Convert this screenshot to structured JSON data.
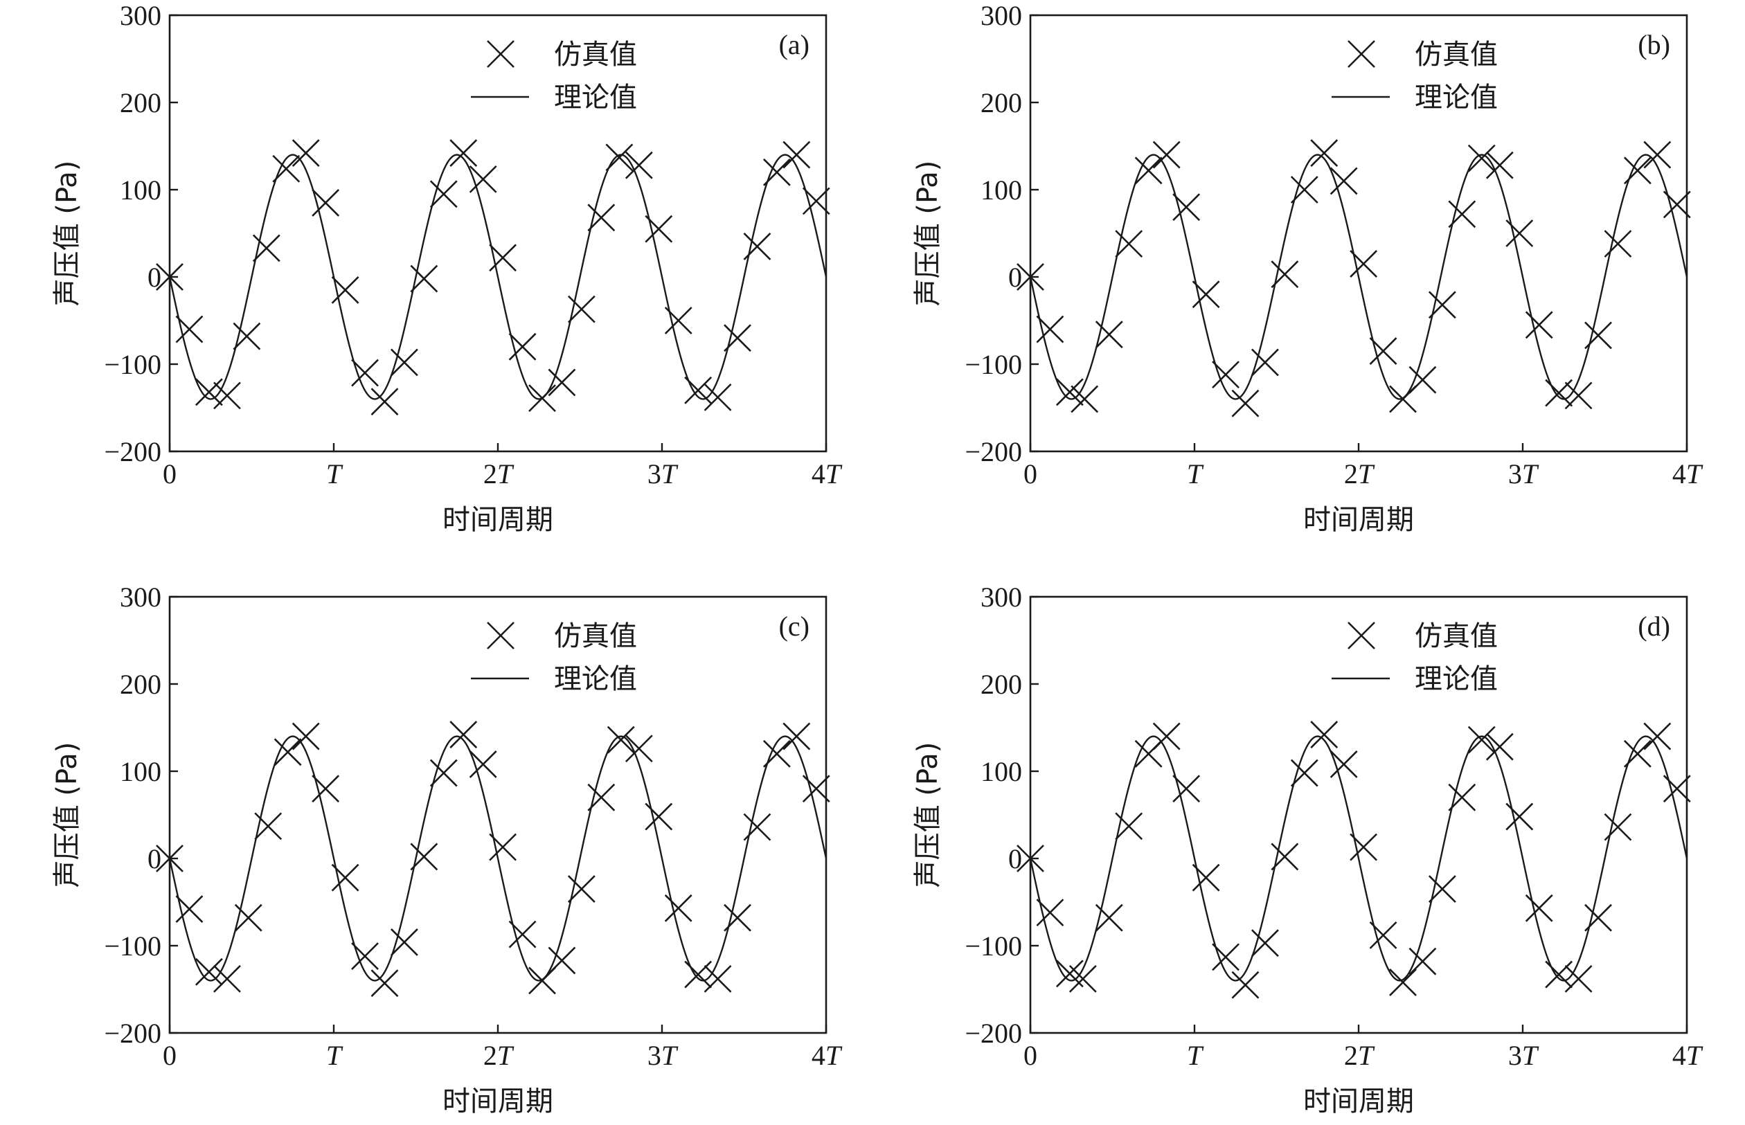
{
  "chart_data": [
    {
      "type": "line",
      "panel_label": "(a)",
      "xlabel": "时间周期",
      "ylabel": "声压值 (Pa)",
      "xlim": [
        0,
        4
      ],
      "ylim": [
        -200,
        300
      ],
      "x_ticks": [
        {
          "value": 0,
          "coef": "0",
          "sym": ""
        },
        {
          "value": 1,
          "coef": "",
          "sym": "T"
        },
        {
          "value": 2,
          "coef": "2",
          "sym": "T"
        },
        {
          "value": 3,
          "coef": "3",
          "sym": "T"
        },
        {
          "value": 4,
          "coef": "4",
          "sym": "T"
        }
      ],
      "y_ticks": [
        {
          "value": -200,
          "label": "−200"
        },
        {
          "value": -100,
          "label": "−100"
        },
        {
          "value": 0,
          "label": "0"
        },
        {
          "value": 100,
          "label": "100"
        },
        {
          "value": 200,
          "label": "200"
        },
        {
          "value": 300,
          "label": "300"
        }
      ],
      "legend": {
        "position": "top-center",
        "items": [
          {
            "marker": "cross",
            "label": "仿真值"
          },
          {
            "marker": "line",
            "label": "理论值"
          }
        ]
      },
      "series": [
        {
          "name": "仿真值",
          "kind": "scatter",
          "marker": "x",
          "x": [
            0.0,
            0.12,
            0.24,
            0.35,
            0.47,
            0.59,
            0.71,
            0.83,
            0.95,
            1.07,
            1.19,
            1.31,
            1.43,
            1.55,
            1.67,
            1.79,
            1.91,
            2.03,
            2.15,
            2.27,
            2.39,
            2.51,
            2.63,
            2.74,
            2.86,
            2.98,
            3.1,
            3.22,
            3.34,
            3.46,
            3.58,
            3.7,
            3.82,
            3.94
          ],
          "y": [
            0,
            -60,
            -132,
            -136,
            -68,
            33,
            124,
            142,
            85,
            -15,
            -110,
            -143,
            -98,
            -2,
            95,
            142,
            112,
            22,
            -80,
            -139,
            -121,
            -37,
            68,
            137,
            128,
            55,
            -50,
            -130,
            -138,
            -70,
            35,
            120,
            140,
            87
          ]
        },
        {
          "name": "理论值",
          "kind": "line",
          "amplitude": 140,
          "phase_sign": -1
        }
      ]
    },
    {
      "type": "line",
      "panel_label": "(b)",
      "xlabel": "时间周期",
      "ylabel": "声压值 (Pa)",
      "xlim": [
        0,
        4
      ],
      "ylim": [
        -200,
        300
      ],
      "x_ticks": [
        {
          "value": 0,
          "coef": "0",
          "sym": ""
        },
        {
          "value": 1,
          "coef": "",
          "sym": "T"
        },
        {
          "value": 2,
          "coef": "2",
          "sym": "T"
        },
        {
          "value": 3,
          "coef": "3",
          "sym": "T"
        },
        {
          "value": 4,
          "coef": "4",
          "sym": "T"
        }
      ],
      "y_ticks": [
        {
          "value": -200,
          "label": "−200"
        },
        {
          "value": -100,
          "label": "−100"
        },
        {
          "value": 0,
          "label": "0"
        },
        {
          "value": 100,
          "label": "100"
        },
        {
          "value": 200,
          "label": "200"
        },
        {
          "value": 300,
          "label": "300"
        }
      ],
      "legend": {
        "position": "top-center",
        "items": [
          {
            "marker": "cross",
            "label": "仿真值"
          },
          {
            "marker": "line",
            "label": "理论值"
          }
        ]
      },
      "series": [
        {
          "name": "仿真值",
          "kind": "scatter",
          "marker": "x",
          "x": [
            0.0,
            0.12,
            0.24,
            0.33,
            0.48,
            0.6,
            0.72,
            0.83,
            0.95,
            1.07,
            1.19,
            1.31,
            1.43,
            1.55,
            1.67,
            1.79,
            1.91,
            2.03,
            2.15,
            2.27,
            2.39,
            2.51,
            2.63,
            2.75,
            2.86,
            2.98,
            3.1,
            3.22,
            3.34,
            3.46,
            3.58,
            3.7,
            3.82,
            3.94
          ],
          "y": [
            0,
            -60,
            -132,
            -140,
            -66,
            38,
            122,
            140,
            80,
            -20,
            -112,
            -145,
            -98,
            3,
            100,
            142,
            110,
            15,
            -85,
            -140,
            -118,
            -32,
            72,
            136,
            128,
            50,
            -55,
            -133,
            -136,
            -67,
            38,
            122,
            140,
            83
          ]
        },
        {
          "name": "理论值",
          "kind": "line",
          "amplitude": 140,
          "phase_sign": -1
        }
      ]
    },
    {
      "type": "line",
      "panel_label": "(c)",
      "xlabel": "时间周期",
      "ylabel": "声压值 (Pa)",
      "xlim": [
        0,
        4
      ],
      "ylim": [
        -200,
        300
      ],
      "x_ticks": [
        {
          "value": 0,
          "coef": "0",
          "sym": ""
        },
        {
          "value": 1,
          "coef": "",
          "sym": "T"
        },
        {
          "value": 2,
          "coef": "2",
          "sym": "T"
        },
        {
          "value": 3,
          "coef": "3",
          "sym": "T"
        },
        {
          "value": 4,
          "coef": "4",
          "sym": "T"
        }
      ],
      "y_ticks": [
        {
          "value": -200,
          "label": "−200"
        },
        {
          "value": -100,
          "label": "−100"
        },
        {
          "value": 0,
          "label": "0"
        },
        {
          "value": 100,
          "label": "100"
        },
        {
          "value": 200,
          "label": "200"
        },
        {
          "value": 300,
          "label": "300"
        }
      ],
      "legend": {
        "position": "top-center",
        "items": [
          {
            "marker": "cross",
            "label": "仿真值"
          },
          {
            "marker": "line",
            "label": "理论值"
          }
        ]
      },
      "series": [
        {
          "name": "仿真值",
          "kind": "scatter",
          "marker": "x",
          "x": [
            0.0,
            0.12,
            0.24,
            0.35,
            0.48,
            0.6,
            0.72,
            0.83,
            0.95,
            1.07,
            1.19,
            1.31,
            1.43,
            1.55,
            1.67,
            1.79,
            1.91,
            2.03,
            2.15,
            2.27,
            2.39,
            2.51,
            2.63,
            2.75,
            2.86,
            2.98,
            3.1,
            3.22,
            3.34,
            3.46,
            3.58,
            3.7,
            3.82,
            3.94
          ],
          "y": [
            0,
            -58,
            -130,
            -138,
            -68,
            37,
            122,
            140,
            80,
            -22,
            -112,
            -143,
            -96,
            2,
            98,
            142,
            108,
            13,
            -87,
            -140,
            -117,
            -35,
            70,
            136,
            126,
            48,
            -57,
            -133,
            -138,
            -68,
            36,
            120,
            140,
            80
          ]
        },
        {
          "name": "理论值",
          "kind": "line",
          "amplitude": 140,
          "phase_sign": -1
        }
      ]
    },
    {
      "type": "line",
      "panel_label": "(d)",
      "xlabel": "时间周期",
      "ylabel": "声压值 (Pa)",
      "xlim": [
        0,
        4
      ],
      "ylim": [
        -200,
        300
      ],
      "x_ticks": [
        {
          "value": 0,
          "coef": "0",
          "sym": ""
        },
        {
          "value": 1,
          "coef": "",
          "sym": "T"
        },
        {
          "value": 2,
          "coef": "2",
          "sym": "T"
        },
        {
          "value": 3,
          "coef": "3",
          "sym": "T"
        },
        {
          "value": 4,
          "coef": "4",
          "sym": "T"
        }
      ],
      "y_ticks": [
        {
          "value": -200,
          "label": "−200"
        },
        {
          "value": -100,
          "label": "−100"
        },
        {
          "value": 0,
          "label": "0"
        },
        {
          "value": 100,
          "label": "100"
        },
        {
          "value": 200,
          "label": "200"
        },
        {
          "value": 300,
          "label": "300"
        }
      ],
      "legend": {
        "position": "top-center",
        "items": [
          {
            "marker": "cross",
            "label": "仿真值"
          },
          {
            "marker": "line",
            "label": "理论值"
          }
        ]
      },
      "series": [
        {
          "name": "仿真值",
          "kind": "scatter",
          "marker": "x",
          "x": [
            0.0,
            0.12,
            0.24,
            0.32,
            0.48,
            0.6,
            0.72,
            0.83,
            0.95,
            1.07,
            1.19,
            1.31,
            1.43,
            1.55,
            1.67,
            1.79,
            1.91,
            2.03,
            2.15,
            2.27,
            2.39,
            2.51,
            2.63,
            2.75,
            2.86,
            2.98,
            3.1,
            3.22,
            3.34,
            3.46,
            3.58,
            3.7,
            3.82,
            3.94
          ],
          "y": [
            0,
            -62,
            -132,
            -138,
            -68,
            37,
            120,
            140,
            80,
            -22,
            -113,
            -145,
            -97,
            2,
            98,
            142,
            108,
            13,
            -88,
            -142,
            -118,
            -35,
            70,
            136,
            128,
            48,
            -57,
            -133,
            -138,
            -68,
            36,
            120,
            140,
            80
          ]
        },
        {
          "name": "理论值",
          "kind": "line",
          "amplitude": 140,
          "phase_sign": -1
        }
      ]
    }
  ]
}
